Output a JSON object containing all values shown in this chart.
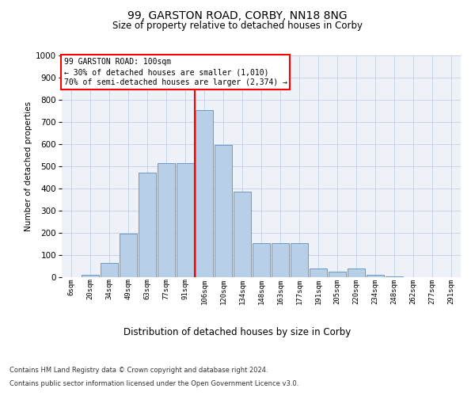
{
  "title1": "99, GARSTON ROAD, CORBY, NN18 8NG",
  "title2": "Size of property relative to detached houses in Corby",
  "xlabel": "Distribution of detached houses by size in Corby",
  "ylabel": "Number of detached properties",
  "footnote1": "Contains HM Land Registry data © Crown copyright and database right 2024.",
  "footnote2": "Contains public sector information licensed under the Open Government Licence v3.0.",
  "categories": [
    "6sqm",
    "20sqm",
    "34sqm",
    "49sqm",
    "63sqm",
    "77sqm",
    "91sqm",
    "106sqm",
    "120sqm",
    "134sqm",
    "148sqm",
    "163sqm",
    "177sqm",
    "191sqm",
    "205sqm",
    "220sqm",
    "234sqm",
    "248sqm",
    "262sqm",
    "277sqm",
    "291sqm"
  ],
  "values": [
    0,
    12,
    65,
    195,
    470,
    515,
    515,
    755,
    595,
    385,
    155,
    155,
    155,
    40,
    25,
    40,
    10,
    3,
    1,
    1,
    0
  ],
  "bar_color": "#b8cfe8",
  "bar_edge_color": "#6699cc",
  "grid_color": "#c8d4e4",
  "vline_color": "red",
  "vline_x_index": 6.5,
  "annotation_text": "99 GARSTON ROAD: 100sqm\n← 30% of detached houses are smaller (1,010)\n70% of semi-detached houses are larger (2,374) →",
  "annotation_box_color": "white",
  "annotation_box_edge_color": "red",
  "ylim": [
    0,
    1000
  ],
  "yticks": [
    0,
    100,
    200,
    300,
    400,
    500,
    600,
    700,
    800,
    900,
    1000
  ],
  "bg_color": "#eef2f8",
  "fig_bg_color": "white",
  "title1_fontsize": 10,
  "title2_fontsize": 8.5,
  "ylabel_fontsize": 7.5,
  "xlabel_fontsize": 8.5,
  "footnote_fontsize": 6.0,
  "tick_labelsize": 7.5,
  "xtick_labelsize": 6.5,
  "annotation_fontsize": 7.0
}
